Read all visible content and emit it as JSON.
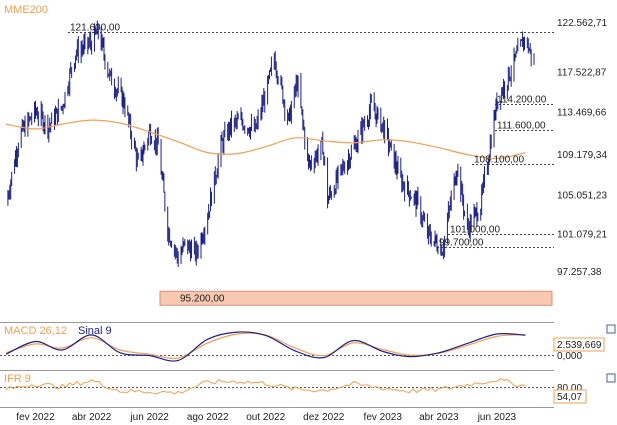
{
  "colors": {
    "candle": "#1b1f8a",
    "mme": "#f0a050",
    "macd": "#1b1f8a",
    "signal": "#f0a050",
    "ifr": "#f0a050",
    "value_box_border": "#f0a050",
    "support_fill": "#f8c8b0",
    "grid": "#444444"
  },
  "chart_data": [
    {
      "type": "candlestick",
      "legend": {
        "label": "MME200",
        "color": "#f0a050",
        "position": "top-left"
      },
      "y_axis_ticks": [
        "122.562,71",
        "117.522,87",
        "113.469,66",
        "109.179,34",
        "105.051,23",
        "101.079,21",
        "97.257,38"
      ],
      "y_axis_values": [
        122562.71,
        117522.87,
        113469.66,
        109179.34,
        105051.23,
        101079.21,
        97257.38
      ],
      "ylim": [
        93500,
        124000
      ],
      "level_lines": [
        {
          "value": 121600,
          "label": "121.600,00"
        },
        {
          "value": 114200,
          "label": "114.200,00"
        },
        {
          "value": 111600,
          "label": "111.600,00"
        },
        {
          "value": 108100,
          "label": "108.100,00"
        },
        {
          "value": 101000,
          "label": "101.000,00"
        },
        {
          "value": 99700,
          "label": "99.700,00"
        },
        {
          "value": 95200,
          "label": "95.200,00"
        }
      ],
      "price_path_dates": [
        "2022-01-01",
        "2022-01-15",
        "2022-02-01",
        "2022-02-15",
        "2022-03-01",
        "2022-03-15",
        "2022-04-01",
        "2022-04-08",
        "2022-04-20",
        "2022-05-05",
        "2022-05-20",
        "2022-06-01",
        "2022-06-10",
        "2022-06-20",
        "2022-07-01",
        "2022-07-08",
        "2022-07-20",
        "2022-08-01",
        "2022-08-15",
        "2022-08-25",
        "2022-09-05",
        "2022-09-20",
        "2022-10-03",
        "2022-10-10",
        "2022-10-25",
        "2022-11-03",
        "2022-11-15",
        "2022-11-30",
        "2022-12-05",
        "2022-12-20",
        "2023-01-05",
        "2023-01-20",
        "2023-02-01",
        "2023-02-20",
        "2023-03-10",
        "2023-03-20",
        "2023-04-05",
        "2023-04-20",
        "2023-05-01",
        "2023-05-15",
        "2023-06-01",
        "2023-06-15",
        "2023-06-30",
        "2023-07-10"
      ],
      "price_path_values": [
        104000,
        111000,
        113500,
        112000,
        114000,
        119500,
        120500,
        121600,
        117000,
        114500,
        108000,
        111500,
        110000,
        101500,
        98500,
        100000,
        99000,
        103000,
        110000,
        112000,
        112500,
        111500,
        116000,
        119000,
        112500,
        116500,
        108000,
        110000,
        104500,
        107500,
        110500,
        114000,
        112000,
        106500,
        104000,
        101000,
        99500,
        108000,
        101500,
        104000,
        114500,
        117500,
        121000,
        118500
      ],
      "mme200_dates": [
        "2022-01-01",
        "2022-02-01",
        "2022-03-01",
        "2022-04-01",
        "2022-05-01",
        "2022-06-01",
        "2022-07-01",
        "2022-08-01",
        "2022-09-01",
        "2022-10-01",
        "2022-11-01",
        "2022-12-01",
        "2023-01-01",
        "2023-02-01",
        "2023-03-01",
        "2023-04-01",
        "2023-05-01",
        "2023-06-01",
        "2023-07-01"
      ],
      "mme200_values": [
        112200,
        111700,
        112200,
        112600,
        112300,
        111400,
        110400,
        109300,
        109200,
        109900,
        110800,
        110500,
        110300,
        110600,
        110400,
        109800,
        109100,
        108700,
        109300
      ],
      "x_axis_labels": [
        "fev 2022",
        "abr 2022",
        "jun 2022",
        "ago 2022",
        "out 2022",
        "dez 2022",
        "fev 2023",
        "abr 2023",
        "jun 2023"
      ],
      "x_axis_label_dates": [
        "2022-02-01",
        "2022-04-01",
        "2022-06-01",
        "2022-08-01",
        "2022-10-01",
        "2022-12-01",
        "2023-02-01",
        "2023-04-01",
        "2023-06-01"
      ]
    },
    {
      "type": "line",
      "legend": {
        "macd_label": "MACD 26,12",
        "signal_label": "Sinal 9",
        "position": "top-left"
      },
      "current_value": "2.539,669",
      "zero_label": "0,000",
      "series": [
        {
          "name": "MACD 26,12",
          "dates": [
            "2022-01-01",
            "2022-02-01",
            "2022-03-01",
            "2022-04-01",
            "2022-05-01",
            "2022-06-01",
            "2022-07-01",
            "2022-08-01",
            "2022-09-01",
            "2022-10-01",
            "2022-11-01",
            "2022-12-01",
            "2023-01-01",
            "2023-02-01",
            "2023-03-01",
            "2023-04-01",
            "2023-05-01",
            "2023-06-01",
            "2023-07-01"
          ],
          "values": [
            -1500,
            1200,
            -600,
            2600,
            -1200,
            -1800,
            -2800,
            1700,
            3200,
            2500,
            -800,
            -2200,
            1400,
            -900,
            -2000,
            -1200,
            800,
            2800,
            2540
          ]
        },
        {
          "name": "Sinal 9",
          "dates": [
            "2022-01-01",
            "2022-02-01",
            "2022-03-01",
            "2022-04-01",
            "2022-05-01",
            "2022-06-01",
            "2022-07-01",
            "2022-08-01",
            "2022-09-01",
            "2022-10-01",
            "2022-11-01",
            "2022-12-01",
            "2023-01-01",
            "2023-02-01",
            "2023-03-01",
            "2023-04-01",
            "2023-05-01",
            "2023-06-01",
            "2023-07-01"
          ],
          "values": [
            -1200,
            700,
            -200,
            2000,
            -600,
            -1500,
            -2300,
            900,
            2800,
            2600,
            -200,
            -1800,
            900,
            -500,
            -1700,
            -1300,
            400,
            2300,
            2700
          ]
        }
      ],
      "ylim": [
        -4000,
        4500
      ]
    },
    {
      "type": "line",
      "legend": {
        "label": "IFR 9",
        "position": "top-left"
      },
      "current_value": "54,07",
      "top_level_label": "80,00",
      "top_level_value": 80,
      "ylim": [
        0,
        100
      ],
      "series": [
        {
          "name": "IFR 9",
          "dates": [
            "2022-01-01",
            "2022-02-01",
            "2022-03-01",
            "2022-04-01",
            "2022-05-01",
            "2022-06-01",
            "2022-07-01",
            "2022-08-01",
            "2022-09-01",
            "2022-10-01",
            "2022-11-01",
            "2022-12-01",
            "2023-01-01",
            "2023-02-01",
            "2023-03-01",
            "2023-04-01",
            "2023-05-01",
            "2023-06-01",
            "2023-07-01"
          ],
          "values": [
            45,
            60,
            52,
            70,
            40,
            38,
            35,
            65,
            68,
            62,
            45,
            42,
            60,
            48,
            40,
            44,
            58,
            72,
            54
          ]
        }
      ]
    }
  ]
}
